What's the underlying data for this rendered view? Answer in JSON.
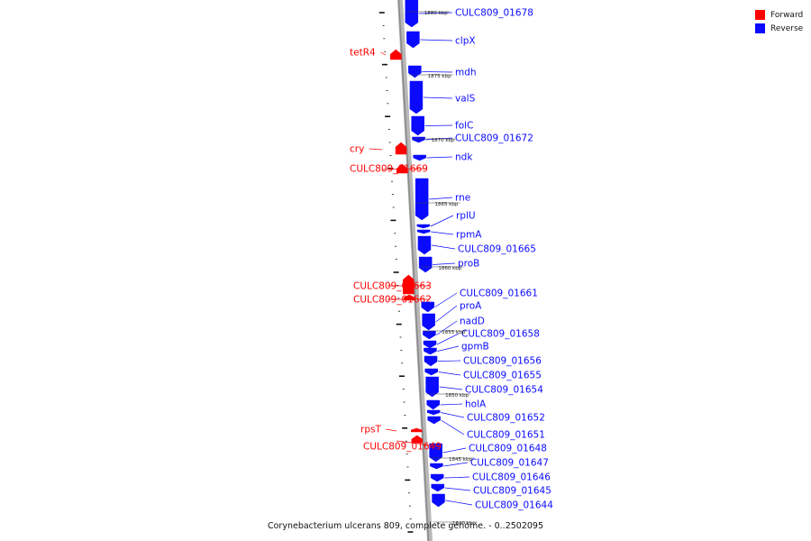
{
  "caption": "Corynebacterium ulcerans 809, complete genome. - 0..2502095",
  "colors": {
    "forward": "#ff0000",
    "reverse": "#0a0aff",
    "backbone": "#8a8a8a"
  },
  "legend": [
    {
      "label": "Forward",
      "strand": "forward"
    },
    {
      "label": "Reverse",
      "strand": "reverse"
    }
  ],
  "genes": [
    {
      "name": "CULC809_01678",
      "strand": "reverse"
    },
    {
      "name": "clpX",
      "strand": "reverse"
    },
    {
      "name": "tetR4",
      "strand": "forward"
    },
    {
      "name": "mdh",
      "strand": "reverse"
    },
    {
      "name": "valS",
      "strand": "reverse"
    },
    {
      "name": "folC",
      "strand": "reverse"
    },
    {
      "name": "CULC809_01672",
      "strand": "reverse"
    },
    {
      "name": "cry",
      "strand": "forward"
    },
    {
      "name": "ndk",
      "strand": "reverse"
    },
    {
      "name": "CULC809_01669",
      "strand": "forward"
    },
    {
      "name": "rne",
      "strand": "reverse"
    },
    {
      "name": "rplU",
      "strand": "reverse"
    },
    {
      "name": "rpmA",
      "strand": "reverse"
    },
    {
      "name": "CULC809_01665",
      "strand": "reverse"
    },
    {
      "name": "proB",
      "strand": "reverse"
    },
    {
      "name": "CULC809_01663",
      "strand": "forward"
    },
    {
      "name": "CULC809_01662",
      "strand": "forward"
    },
    {
      "name": "CULC809_01661",
      "strand": "reverse"
    },
    {
      "name": "proA",
      "strand": "reverse"
    },
    {
      "name": "nadD",
      "strand": "reverse"
    },
    {
      "name": "CULC809_01658",
      "strand": "reverse"
    },
    {
      "name": "gpmB",
      "strand": "reverse"
    },
    {
      "name": "CULC809_01656",
      "strand": "reverse"
    },
    {
      "name": "CULC809_01655",
      "strand": "reverse"
    },
    {
      "name": "CULC809_01654",
      "strand": "reverse"
    },
    {
      "name": "holA",
      "strand": "reverse"
    },
    {
      "name": "CULC809_01652",
      "strand": "reverse"
    },
    {
      "name": "CULC809_01651",
      "strand": "reverse"
    },
    {
      "name": "rpsT",
      "strand": "forward"
    },
    {
      "name": "CULC809_01648",
      "strand": "reverse"
    },
    {
      "name": "CULC809_01649",
      "strand": "forward"
    },
    {
      "name": "CULC809_01647",
      "strand": "reverse"
    },
    {
      "name": "CULC809_01646",
      "strand": "reverse"
    },
    {
      "name": "CULC809_01645",
      "strand": "reverse"
    },
    {
      "name": "CULC809_01644",
      "strand": "reverse"
    }
  ],
  "scale_labels": [
    "1880 kbp",
    "1875 kbp",
    "1870 kbp",
    "1865 kbp",
    "1860 kbp",
    "1855 kbp",
    "1850 kbp",
    "1845 kbp",
    "1840 kbp"
  ]
}
